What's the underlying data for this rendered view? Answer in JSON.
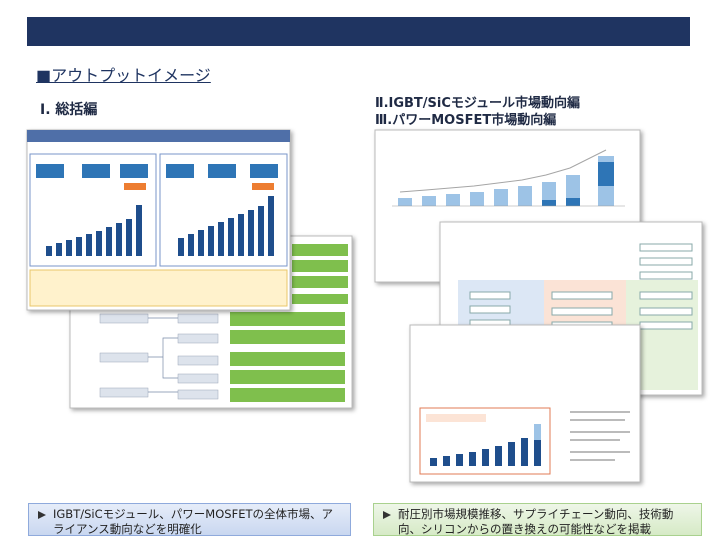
{
  "header": {
    "section_title": "■アウトプットイメージ"
  },
  "panels": [
    {
      "titles": [
        "Ⅰ. 総括編"
      ]
    },
    {
      "titles": [
        "Ⅱ.IGBT/SiCモジュール市場動向編",
        "Ⅲ.パワーMOSFET市場動向編"
      ]
    }
  ],
  "summaries": [
    "IGBT/SiCモジュール、パワーMOSFETの全体市場、アライアンス動向などを明確化",
    "耐圧別市場規模推移、サプライチェーン動向、技術動向、シリコンからの置き換えの可能性などを掲載"
  ]
}
